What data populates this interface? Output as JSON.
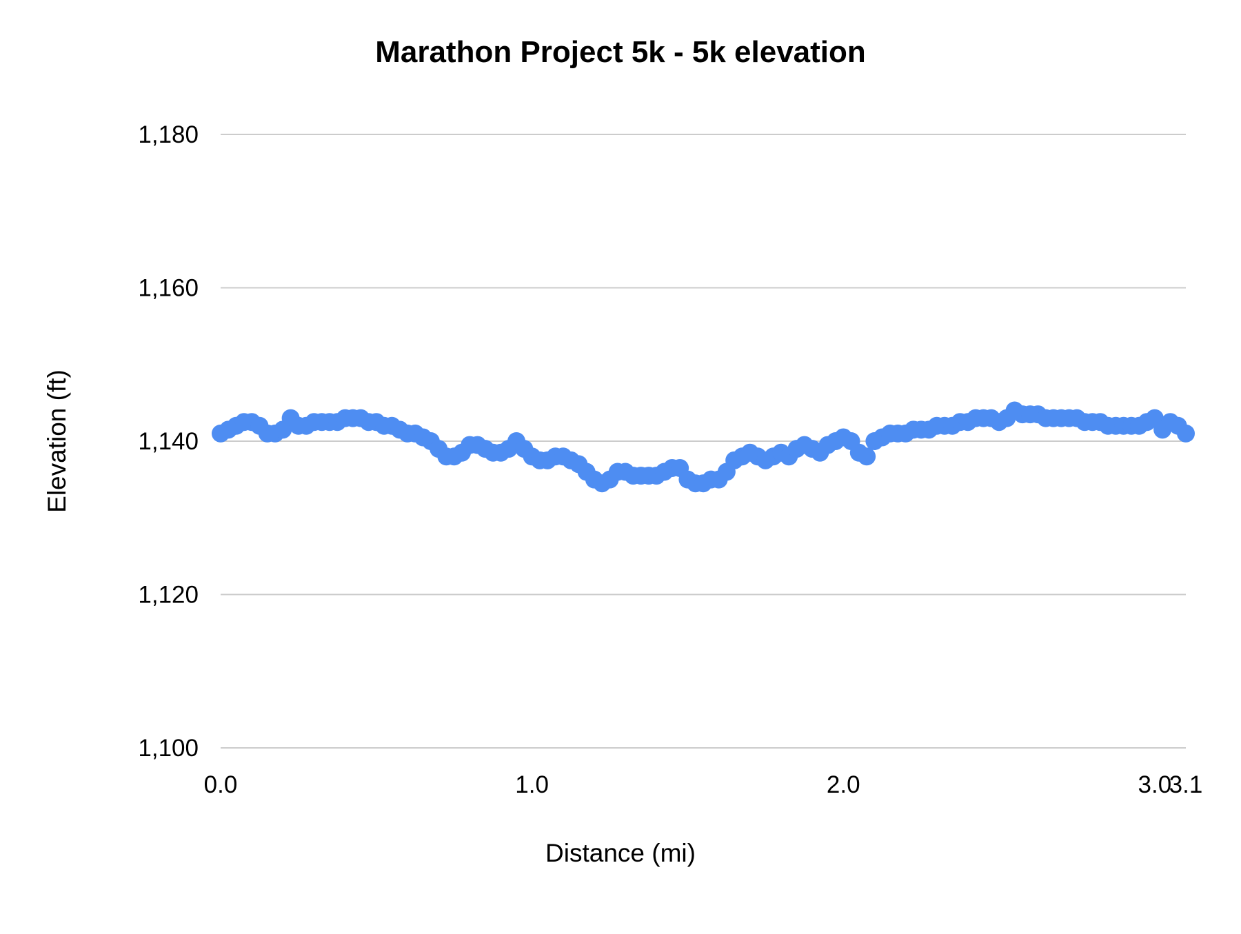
{
  "chart_data": {
    "type": "scatter",
    "title": "Marathon Project 5k - 5k elevation",
    "xlabel": "Distance (mi)",
    "ylabel": "Elevation (ft)",
    "xlim": [
      0,
      3.1
    ],
    "ylim": [
      1100,
      1180
    ],
    "x_ticks": [
      0.0,
      1.0,
      2.0,
      3.0,
      3.1
    ],
    "x_tick_labels": [
      "0.0",
      "1.0",
      "2.0",
      "3.0",
      "3.1"
    ],
    "y_ticks": [
      1100,
      1120,
      1140,
      1160,
      1180
    ],
    "y_tick_labels": [
      "1,100",
      "1,120",
      "1,140",
      "1,160",
      "1,180"
    ],
    "grid": true,
    "legend": "none",
    "marker_color": "#4e8df2",
    "grid_color": "#cccccc",
    "background_color": "#ffffff",
    "marker_radius": 13,
    "points": [
      [
        0.0,
        1141
      ],
      [
        0.025,
        1141.5
      ],
      [
        0.05,
        1142
      ],
      [
        0.075,
        1142.5
      ],
      [
        0.1,
        1142.5
      ],
      [
        0.125,
        1142
      ],
      [
        0.15,
        1141
      ],
      [
        0.175,
        1141
      ],
      [
        0.2,
        1141.5
      ],
      [
        0.225,
        1143
      ],
      [
        0.25,
        1142
      ],
      [
        0.275,
        1142
      ],
      [
        0.3,
        1142.5
      ],
      [
        0.325,
        1142.5
      ],
      [
        0.35,
        1142.5
      ],
      [
        0.375,
        1142.5
      ],
      [
        0.4,
        1143
      ],
      [
        0.425,
        1143
      ],
      [
        0.45,
        1143
      ],
      [
        0.475,
        1142.5
      ],
      [
        0.5,
        1142.5
      ],
      [
        0.525,
        1142
      ],
      [
        0.55,
        1142
      ],
      [
        0.575,
        1141.5
      ],
      [
        0.6,
        1141
      ],
      [
        0.625,
        1141
      ],
      [
        0.65,
        1140.5
      ],
      [
        0.675,
        1140
      ],
      [
        0.7,
        1139
      ],
      [
        0.725,
        1138
      ],
      [
        0.75,
        1138
      ],
      [
        0.775,
        1138.5
      ],
      [
        0.8,
        1139.5
      ],
      [
        0.825,
        1139.5
      ],
      [
        0.85,
        1139
      ],
      [
        0.875,
        1138.5
      ],
      [
        0.9,
        1138.5
      ],
      [
        0.925,
        1139
      ],
      [
        0.95,
        1140
      ],
      [
        0.975,
        1139
      ],
      [
        1.0,
        1138
      ],
      [
        1.025,
        1137.5
      ],
      [
        1.05,
        1137.5
      ],
      [
        1.075,
        1138
      ],
      [
        1.1,
        1138
      ],
      [
        1.125,
        1137.5
      ],
      [
        1.15,
        1137
      ],
      [
        1.175,
        1136
      ],
      [
        1.2,
        1135
      ],
      [
        1.225,
        1134.5
      ],
      [
        1.25,
        1135
      ],
      [
        1.275,
        1136
      ],
      [
        1.3,
        1136
      ],
      [
        1.325,
        1135.5
      ],
      [
        1.35,
        1135.5
      ],
      [
        1.375,
        1135.5
      ],
      [
        1.4,
        1135.5
      ],
      [
        1.425,
        1136
      ],
      [
        1.45,
        1136.5
      ],
      [
        1.475,
        1136.5
      ],
      [
        1.5,
        1135
      ],
      [
        1.525,
        1134.5
      ],
      [
        1.55,
        1134.5
      ],
      [
        1.575,
        1135
      ],
      [
        1.6,
        1135
      ],
      [
        1.625,
        1136
      ],
      [
        1.65,
        1137.5
      ],
      [
        1.675,
        1138
      ],
      [
        1.7,
        1138.5
      ],
      [
        1.725,
        1138
      ],
      [
        1.75,
        1137.5
      ],
      [
        1.775,
        1138
      ],
      [
        1.8,
        1138.5
      ],
      [
        1.825,
        1138
      ],
      [
        1.85,
        1139
      ],
      [
        1.875,
        1139.5
      ],
      [
        1.9,
        1139
      ],
      [
        1.925,
        1138.5
      ],
      [
        1.95,
        1139.5
      ],
      [
        1.975,
        1140
      ],
      [
        2.0,
        1140.5
      ],
      [
        2.025,
        1140
      ],
      [
        2.05,
        1138.5
      ],
      [
        2.075,
        1138
      ],
      [
        2.1,
        1140
      ],
      [
        2.125,
        1140.5
      ],
      [
        2.15,
        1141
      ],
      [
        2.175,
        1141
      ],
      [
        2.2,
        1141
      ],
      [
        2.225,
        1141.5
      ],
      [
        2.25,
        1141.5
      ],
      [
        2.275,
        1141.5
      ],
      [
        2.3,
        1142
      ],
      [
        2.325,
        1142
      ],
      [
        2.35,
        1142
      ],
      [
        2.375,
        1142.5
      ],
      [
        2.4,
        1142.5
      ],
      [
        2.425,
        1143
      ],
      [
        2.45,
        1143
      ],
      [
        2.475,
        1143
      ],
      [
        2.5,
        1142.5
      ],
      [
        2.525,
        1143
      ],
      [
        2.55,
        1144
      ],
      [
        2.575,
        1143.5
      ],
      [
        2.6,
        1143.5
      ],
      [
        2.625,
        1143.5
      ],
      [
        2.65,
        1143
      ],
      [
        2.675,
        1143
      ],
      [
        2.7,
        1143
      ],
      [
        2.725,
        1143
      ],
      [
        2.75,
        1143
      ],
      [
        2.775,
        1142.5
      ],
      [
        2.8,
        1142.5
      ],
      [
        2.825,
        1142.5
      ],
      [
        2.85,
        1142
      ],
      [
        2.875,
        1142
      ],
      [
        2.9,
        1142
      ],
      [
        2.925,
        1142
      ],
      [
        2.95,
        1142
      ],
      [
        2.975,
        1142.5
      ],
      [
        3.0,
        1143
      ],
      [
        3.025,
        1141.5
      ],
      [
        3.05,
        1142.5
      ],
      [
        3.075,
        1142
      ],
      [
        3.1,
        1141
      ]
    ]
  }
}
